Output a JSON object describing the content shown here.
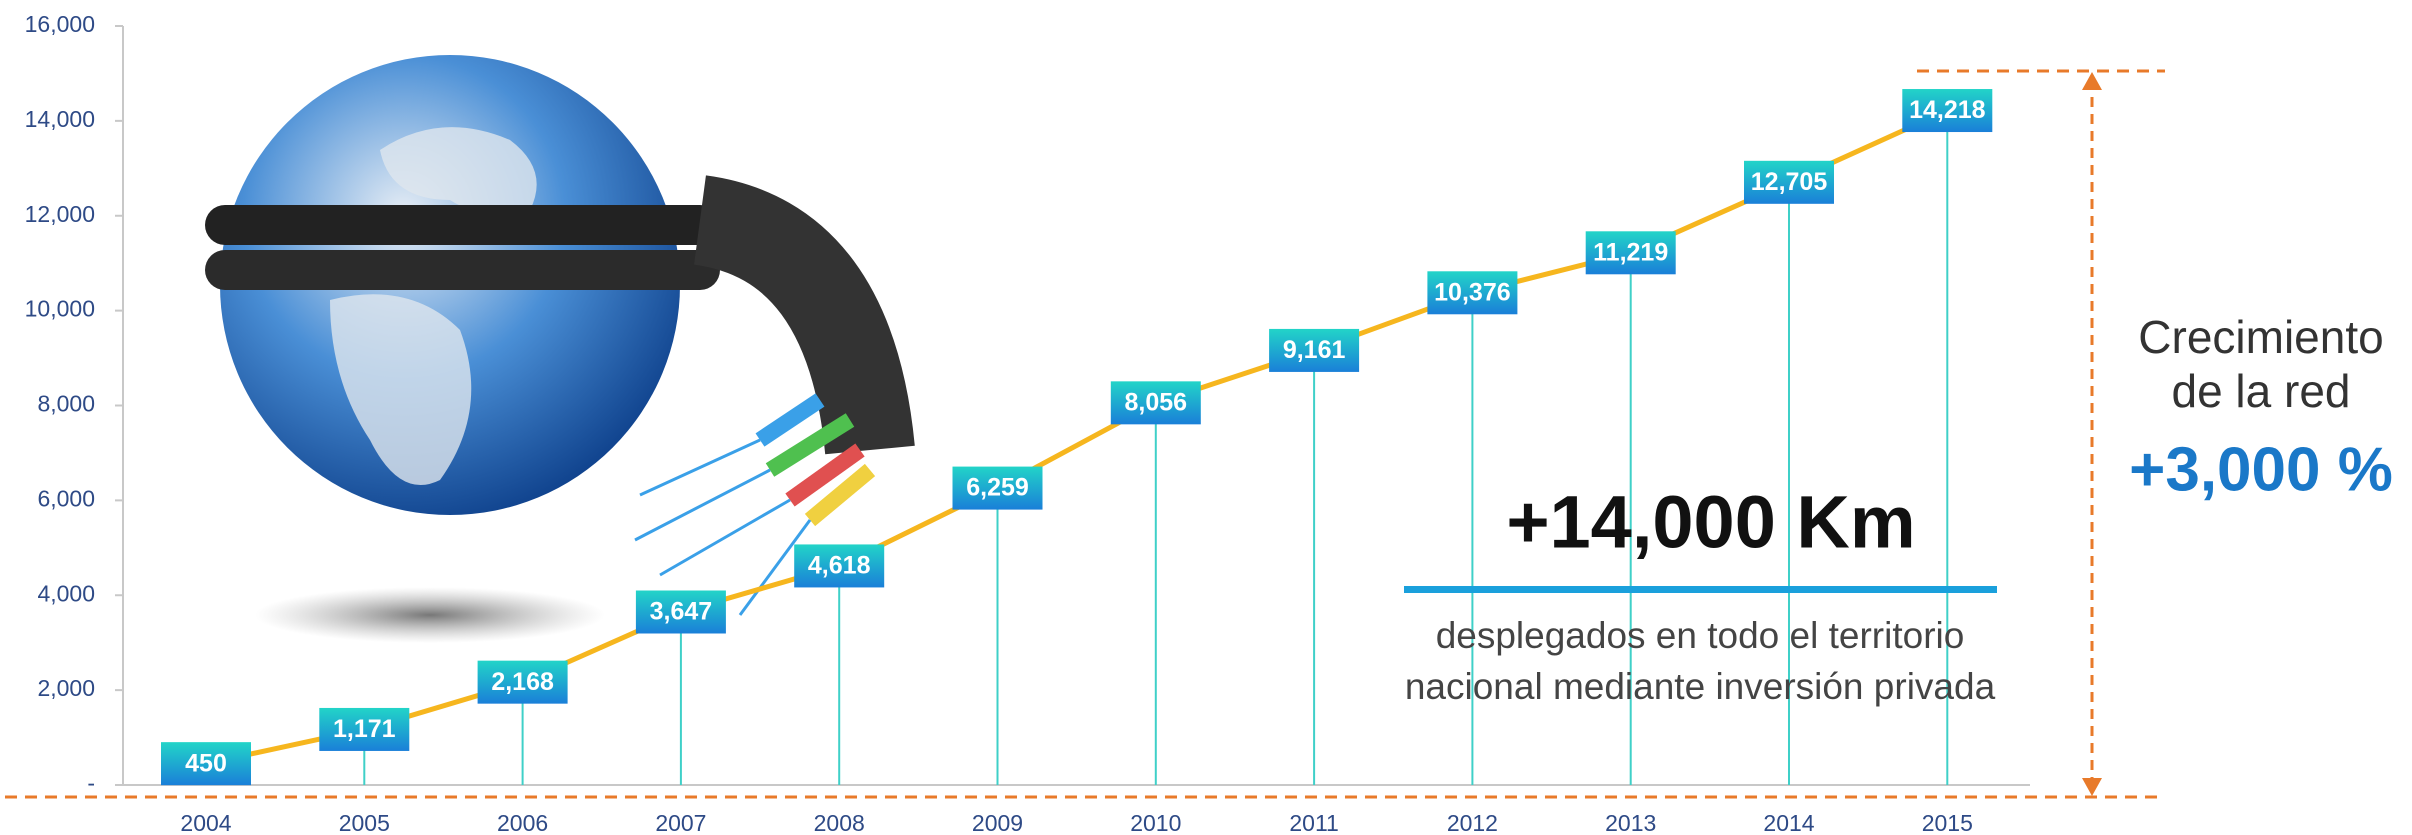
{
  "chart_data": {
    "type": "line",
    "categories": [
      "2004",
      "2005",
      "2006",
      "2007",
      "2008",
      "2009",
      "2010",
      "2011",
      "2012",
      "2013",
      "2014",
      "2015"
    ],
    "series": [
      {
        "color": "#f6b61e",
        "values": [
          450,
          1171,
          2168,
          3647,
          4618,
          6259,
          8056,
          9161,
          10376,
          11219,
          12705,
          14218
        ],
        "value_labels": [
          "450",
          "1,171",
          "2,168",
          "3,647",
          "4,618",
          "6,259",
          "8,056",
          "9,161",
          "10,376",
          "11,219",
          "12,705",
          "14,218"
        ]
      }
    ],
    "ylim": [
      0,
      16000
    ],
    "yticks": [
      {
        "value": 0,
        "label": "-"
      },
      {
        "value": 2000,
        "label": "2,000"
      },
      {
        "value": 4000,
        "label": "4,000"
      },
      {
        "value": 6000,
        "label": "6,000"
      },
      {
        "value": 8000,
        "label": "8,000"
      },
      {
        "value": 10000,
        "label": "10,000"
      },
      {
        "value": 12000,
        "label": "12,000"
      },
      {
        "value": 14000,
        "label": "14,000"
      },
      {
        "value": 16000,
        "label": "16,000"
      }
    ],
    "annotations": {
      "headline": "+14,000 Km",
      "line1": "desplegados en todo el territorio",
      "line2": "nacional mediante inversión privada",
      "growth1": "Crecimiento",
      "growth2": "de la red",
      "growth3": "+3,000 %"
    }
  }
}
